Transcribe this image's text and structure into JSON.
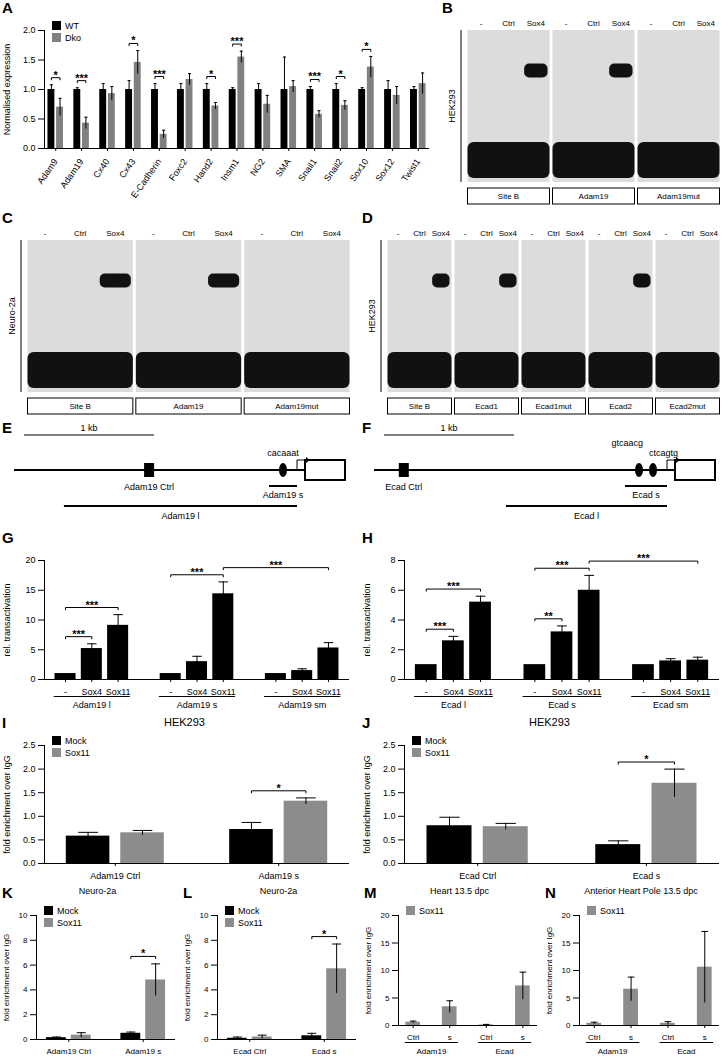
{
  "chart_data": [
    {
      "panel": "A",
      "type": "bar",
      "ylabel": "Normalised expression",
      "categories": [
        "Adam9",
        "Adam19",
        "Cx40",
        "Cx43",
        "E-Cadherin",
        "Foxc2",
        "Hand2",
        "Insm1",
        "NG2",
        "SMA",
        "Snail1",
        "Snail2",
        "Sox10",
        "Sox12",
        "Twist1"
      ],
      "series": [
        {
          "name": "WT",
          "color": "#000000",
          "values": [
            1.0,
            1.0,
            1.0,
            1.0,
            1.0,
            1.0,
            1.0,
            1.0,
            1.0,
            1.0,
            1.0,
            1.0,
            1.0,
            1.0,
            1.0
          ],
          "errors": [
            0.08,
            0.03,
            0.1,
            0.15,
            0.1,
            0.1,
            0.1,
            0.03,
            0.1,
            0.55,
            0.05,
            0.1,
            0.03,
            0.15,
            0.05
          ]
        },
        {
          "name": "Dko",
          "color": "#808080",
          "values": [
            0.7,
            0.43,
            0.93,
            1.46,
            0.24,
            1.17,
            0.72,
            1.55,
            0.75,
            1.05,
            0.58,
            0.73,
            1.38,
            0.9,
            1.1
          ],
          "errors": [
            0.15,
            0.1,
            0.12,
            0.2,
            0.07,
            0.1,
            0.06,
            0.1,
            0.15,
            0.1,
            0.06,
            0.08,
            0.18,
            0.15,
            0.18
          ]
        }
      ],
      "ylim": [
        0,
        2
      ],
      "yticks": [
        {
          "value": 0,
          "label": "0.0"
        },
        0.5,
        {
          "value": 1,
          "label": "1.0"
        },
        1.5,
        {
          "value": 2,
          "label": "2.0"
        }
      ],
      "legend": "top-left",
      "significance": [
        {
          "from": [
            0,
            0
          ],
          "to": [
            0,
            1
          ],
          "label": "*"
        },
        {
          "from": [
            1,
            0
          ],
          "to": [
            1,
            1
          ],
          "label": "***"
        },
        {
          "from": [
            3,
            0
          ],
          "to": [
            3,
            1
          ],
          "label": "*"
        },
        {
          "from": [
            4,
            0
          ],
          "to": [
            4,
            1
          ],
          "label": "***"
        },
        {
          "from": [
            6,
            0
          ],
          "to": [
            6,
            1
          ],
          "label": "*"
        },
        {
          "from": [
            7,
            0
          ],
          "to": [
            7,
            1
          ],
          "label": "***"
        },
        {
          "from": [
            10,
            0
          ],
          "to": [
            10,
            1
          ],
          "label": "***"
        },
        {
          "from": [
            11,
            0
          ],
          "to": [
            11,
            1
          ],
          "label": "*"
        },
        {
          "from": [
            12,
            0
          ],
          "to": [
            12,
            1
          ],
          "label": "*"
        }
      ]
    },
    {
      "panel": "G",
      "type": "bar",
      "ylabel": "rel. transactivation",
      "categories": [
        "Adam19 l",
        "Adam19 s",
        "Adam19 sm"
      ],
      "series": [
        {
          "name": "-",
          "color": "#000000",
          "values": [
            1,
            1,
            1
          ],
          "errors": [
            0,
            0,
            0
          ]
        },
        {
          "name": "Sox4",
          "color": "#000000",
          "values": [
            5.2,
            3.0,
            1.5
          ],
          "errors": [
            0.8,
            0.9,
            0.3
          ]
        },
        {
          "name": "Sox11",
          "color": "#000000",
          "values": [
            9.1,
            14.4,
            5.3
          ],
          "errors": [
            1.8,
            2.0,
            0.9
          ]
        }
      ],
      "ylim": [
        0,
        20
      ],
      "yticks": [
        0,
        5,
        10,
        15,
        20
      ],
      "significance": [
        {
          "from": [
            0,
            0
          ],
          "to": [
            0,
            1
          ],
          "label": "***"
        },
        {
          "from": [
            0,
            0
          ],
          "to": [
            0,
            2
          ],
          "label": "***"
        },
        {
          "from": [
            1,
            0
          ],
          "to": [
            1,
            2
          ],
          "label": "***"
        },
        {
          "from": [
            1,
            2
          ],
          "to": [
            2,
            2
          ],
          "label": "***"
        }
      ]
    },
    {
      "panel": "H",
      "type": "bar",
      "ylabel": "rel. transactivation",
      "categories": [
        "Ecad l",
        "Ecad s",
        "Ecad sm"
      ],
      "series": [
        {
          "name": "-",
          "color": "#000000",
          "values": [
            1,
            1,
            1
          ],
          "errors": [
            0,
            0,
            0
          ]
        },
        {
          "name": "Sox4",
          "color": "#000000",
          "values": [
            2.6,
            3.2,
            1.25
          ],
          "errors": [
            0.3,
            0.4,
            0.15
          ]
        },
        {
          "name": "Sox11",
          "color": "#000000",
          "values": [
            5.2,
            6.0,
            1.3
          ],
          "errors": [
            0.4,
            1.0,
            0.2
          ]
        }
      ],
      "ylim": [
        0,
        8
      ],
      "yticks": [
        0,
        2,
        4,
        6,
        8
      ],
      "significance": [
        {
          "from": [
            0,
            0
          ],
          "to": [
            0,
            1
          ],
          "label": "***"
        },
        {
          "from": [
            0,
            0
          ],
          "to": [
            0,
            2
          ],
          "label": "***"
        },
        {
          "from": [
            1,
            0
          ],
          "to": [
            1,
            1
          ],
          "label": "**"
        },
        {
          "from": [
            1,
            0
          ],
          "to": [
            1,
            2
          ],
          "label": "***"
        },
        {
          "from": [
            1,
            2
          ],
          "to": [
            2,
            2
          ],
          "label": "***"
        }
      ]
    },
    {
      "panel": "I",
      "type": "bar",
      "title": "HEK293",
      "ylabel": "fold enrichment over IgG",
      "categories": [
        "Adam19 Ctrl",
        "Adam19 s"
      ],
      "series": [
        {
          "name": "Mock",
          "color": "#000000",
          "values": [
            0.58,
            0.72
          ],
          "errors": [
            0.08,
            0.15
          ]
        },
        {
          "name": "Sox11",
          "color": "#8c8c8c",
          "values": [
            0.65,
            1.32
          ],
          "errors": [
            0.05,
            0.07
          ]
        }
      ],
      "ylim": [
        0,
        2.5
      ],
      "yticks": [
        {
          "value": 0,
          "label": "0.0"
        },
        0.5,
        {
          "value": 1,
          "label": "1.0"
        },
        1.5,
        {
          "value": 2,
          "label": "2.0"
        },
        2.5
      ],
      "legend": "top-left",
      "significance": [
        {
          "from": [
            1,
            0
          ],
          "to": [
            1,
            1
          ],
          "label": "*"
        }
      ]
    },
    {
      "panel": "J",
      "type": "bar",
      "title": "HEK293",
      "ylabel": "fold enrichment over IgG",
      "categories": [
        "Ecad Ctrl",
        "Ecad s"
      ],
      "series": [
        {
          "name": "Mock",
          "color": "#000000",
          "values": [
            0.8,
            0.4
          ],
          "errors": [
            0.18,
            0.08
          ]
        },
        {
          "name": "Sox11",
          "color": "#8c8c8c",
          "values": [
            0.78,
            1.7
          ],
          "errors": [
            0.07,
            0.3
          ]
        }
      ],
      "ylim": [
        0,
        2.5
      ],
      "yticks": [
        {
          "value": 0,
          "label": "0.0"
        },
        0.5,
        {
          "value": 1,
          "label": "1.0"
        },
        1.5,
        {
          "value": 2,
          "label": "2.0"
        },
        2.5
      ],
      "legend": "top-left",
      "significance": [
        {
          "from": [
            1,
            0
          ],
          "to": [
            1,
            1
          ],
          "label": "*"
        }
      ]
    },
    {
      "panel": "K",
      "type": "bar",
      "title": "Neuro-2a",
      "ylabel": "fold enrichment over IgG",
      "categories": [
        "Adam19 Ctrl",
        "Adam19 s"
      ],
      "series": [
        {
          "name": "Mock",
          "color": "#000000",
          "values": [
            0.15,
            0.5
          ],
          "errors": [
            0.05,
            0.1
          ]
        },
        {
          "name": "Sox11",
          "color": "#8c8c8c",
          "values": [
            0.35,
            4.8
          ],
          "errors": [
            0.2,
            1.3
          ]
        }
      ],
      "ylim": [
        0,
        10
      ],
      "yticks": [
        0,
        2,
        4,
        6,
        8,
        10
      ],
      "legend": "top-left",
      "significance": [
        {
          "from": [
            1,
            0
          ],
          "to": [
            1,
            1
          ],
          "label": "*"
        }
      ]
    },
    {
      "panel": "L",
      "type": "bar",
      "title": "Neuro-2a",
      "ylabel": "fold enrichment over IgG",
      "categories": [
        "Ecad Ctrl",
        "Ecad s"
      ],
      "series": [
        {
          "name": "Mock",
          "color": "#000000",
          "values": [
            0.1,
            0.3
          ],
          "errors": [
            0.1,
            0.2
          ]
        },
        {
          "name": "Sox11",
          "color": "#8c8c8c",
          "values": [
            0.2,
            5.7
          ],
          "errors": [
            0.15,
            2.0
          ]
        }
      ],
      "ylim": [
        0,
        10
      ],
      "yticks": [
        0,
        2,
        4,
        6,
        8,
        10
      ],
      "legend": "top-left",
      "significance": [
        {
          "from": [
            1,
            0
          ],
          "to": [
            1,
            1
          ],
          "label": "*"
        }
      ]
    },
    {
      "panel": "M",
      "type": "bar",
      "title": "Heart 13.5 dpc",
      "ylabel": "fold enrichment over IgG",
      "categories": [
        "Ctrl",
        "s",
        "Ctrl",
        "s"
      ],
      "groups": [
        {
          "name": "Adam19",
          "categories": [
            0,
            1
          ]
        },
        {
          "name": "Ecad",
          "categories": [
            2,
            3
          ]
        }
      ],
      "series": [
        {
          "name": "Sox11",
          "color": "#8c8c8c",
          "values": [
            0.6,
            3.4,
            0.1,
            7.2
          ],
          "errors": [
            0.2,
            1.1,
            0.1,
            2.5
          ]
        }
      ],
      "ylim": [
        0,
        20
      ],
      "yticks": [
        0,
        5,
        10,
        15,
        20
      ],
      "legend": "top-left"
    },
    {
      "panel": "N",
      "type": "bar",
      "title": "Anterior Heart Pole 13.5 dpc",
      "ylabel": "fold enrichment over IgG",
      "categories": [
        "Ctrl",
        "s",
        "Ctrl",
        "s"
      ],
      "groups": [
        {
          "name": "Adam19",
          "categories": [
            0,
            1
          ]
        },
        {
          "name": "Ecad",
          "categories": [
            2,
            3
          ]
        }
      ],
      "series": [
        {
          "name": "Sox11",
          "color": "#8c8c8c",
          "values": [
            0.4,
            6.6,
            0.4,
            10.6
          ],
          "errors": [
            0.2,
            2.2,
            0.3,
            6.5
          ]
        }
      ],
      "ylim": [
        0,
        20
      ],
      "yticks": [
        0,
        5,
        10,
        15,
        20
      ],
      "legend": "top-left"
    }
  ],
  "gels": [
    {
      "panel": "B",
      "cell_line": "HEK293",
      "lanes": [
        "-",
        "Ctrl",
        "Sox4"
      ],
      "probes": [
        {
          "name": "Site B",
          "shift": [
            false,
            false,
            true
          ]
        },
        {
          "name": "Adam19",
          "shift": [
            false,
            false,
            true
          ]
        },
        {
          "name": "Adam19mut",
          "shift": [
            false,
            false,
            false
          ]
        }
      ]
    },
    {
      "panel": "C",
      "cell_line": "Neuro-2a",
      "lanes": [
        "-",
        "Ctrl",
        "Sox4"
      ],
      "probes": [
        {
          "name": "Site B",
          "shift": [
            false,
            false,
            true
          ]
        },
        {
          "name": "Adam19",
          "shift": [
            false,
            false,
            true
          ]
        },
        {
          "name": "Adam19mut",
          "shift": [
            false,
            false,
            false
          ]
        }
      ]
    },
    {
      "panel": "D",
      "cell_line": "HEK293",
      "lanes": [
        "-",
        "Ctrl",
        "Sox4"
      ],
      "probes": [
        {
          "name": "Site B",
          "shift": [
            false,
            false,
            true
          ]
        },
        {
          "name": "Ecad1",
          "shift": [
            false,
            false,
            true
          ]
        },
        {
          "name": "Ecad1mut",
          "shift": [
            false,
            false,
            false
          ]
        },
        {
          "name": "Ecad2",
          "shift": [
            false,
            false,
            true
          ]
        },
        {
          "name": "Ecad2mut",
          "shift": [
            false,
            false,
            false
          ]
        }
      ]
    }
  ],
  "schematics": [
    {
      "panel": "E",
      "scale_bar": "1 kb",
      "control": "Adam19 Ctrl",
      "motifs": [
        "cacaaat"
      ],
      "long_fragment": "Adam19 l",
      "short_fragment": "Adam19 s"
    },
    {
      "panel": "F",
      "scale_bar": "1 kb",
      "control": "Ecad Ctrl",
      "motifs": [
        "gtcaacg",
        "ctcagtg"
      ],
      "long_fragment": "Ecad l",
      "short_fragment": "Ecad s"
    }
  ]
}
